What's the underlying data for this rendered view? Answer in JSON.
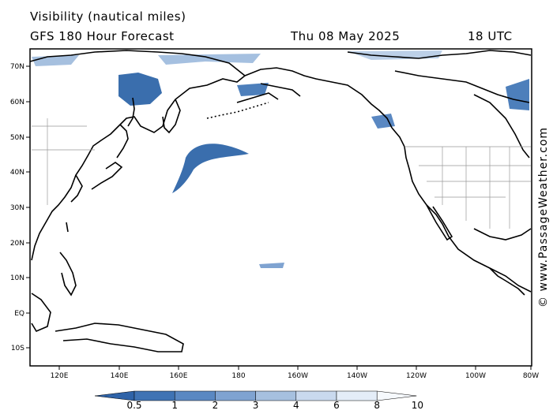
{
  "header": {
    "title": "Visibility (nautical miles)",
    "model": "GFS 180 Hour Forecast",
    "date": "Thu 08 May 2025",
    "time": "18 UTC"
  },
  "credit": "© www.PassageWeather.com",
  "map": {
    "lat_labels": [
      "70N",
      "60N",
      "50N",
      "40N",
      "30N",
      "20N",
      "10N",
      "EQ",
      "10S"
    ],
    "lon_labels": [
      "120E",
      "140E",
      "160E",
      "180",
      "160W",
      "140W",
      "120W",
      "100W",
      "80W"
    ]
  },
  "colorbar": {
    "labels": [
      "0.5",
      "1",
      "2",
      "3",
      "4",
      "6",
      "8",
      "10"
    ],
    "colors": [
      "#2f63a8",
      "#3f73b4",
      "#5a88c2",
      "#7fa3d1",
      "#a6c0df",
      "#c9d9ee",
      "#e4edf8",
      "#f6f9fd"
    ]
  }
}
